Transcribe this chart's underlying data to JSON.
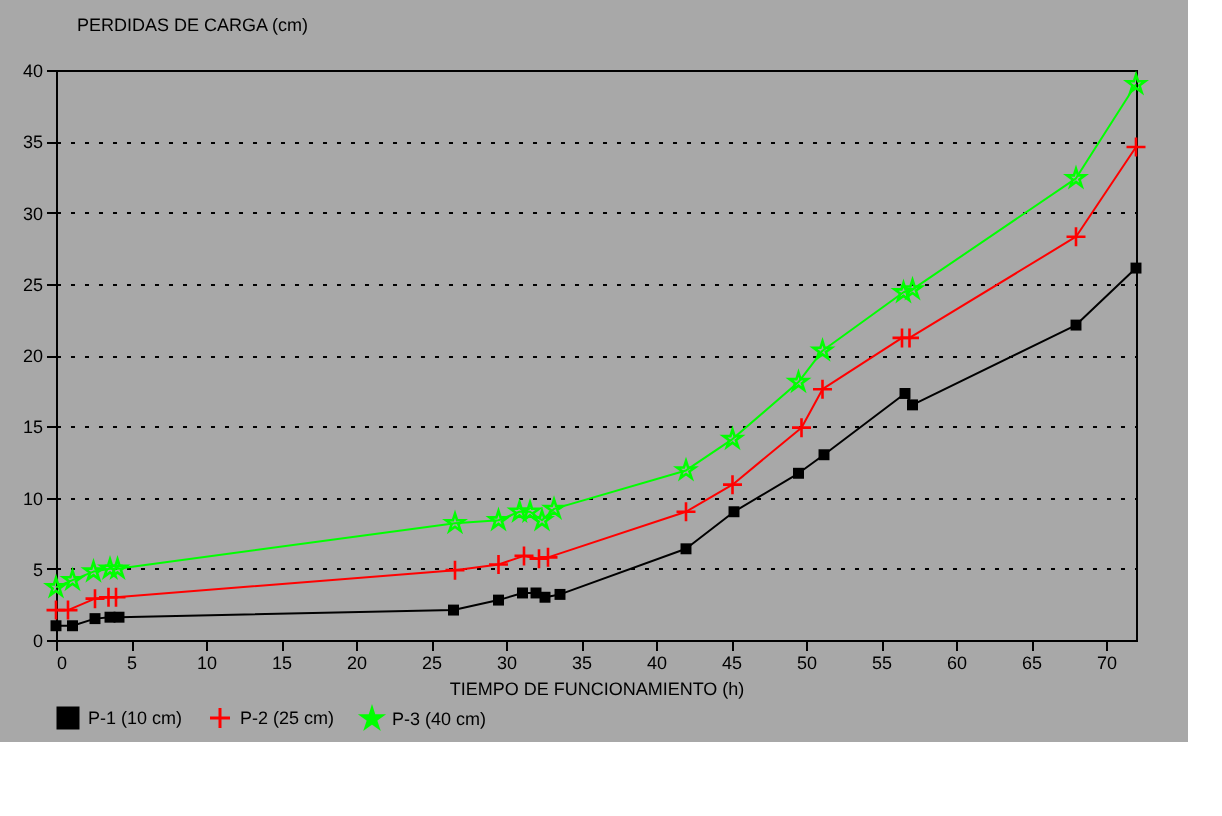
{
  "chart_data": {
    "type": "line",
    "xlabel": "TIEMPO DE FUNCIONAMIENTO (h)",
    "ylabel": "PERDIDAS DE CARGA (cm)",
    "xlim": [
      0,
      72
    ],
    "xticks": [
      0,
      5,
      10,
      15,
      20,
      25,
      30,
      35,
      40,
      45,
      50,
      55,
      60,
      65,
      70
    ],
    "ylim": [
      0,
      40
    ],
    "yticks": [
      0,
      5,
      10,
      15,
      20,
      25,
      30,
      35,
      40
    ],
    "grid": "y",
    "legend": "bottom",
    "series": [
      {
        "name": "P-1 (10 cm)",
        "color": "#000000",
        "marker": "square",
        "x": [
          0,
          1.1,
          2.6,
          3.6,
          4.2,
          26.5,
          29.5,
          31.1,
          32.0,
          32.6,
          33.6,
          42.0,
          45.2,
          49.5,
          51.2,
          56.6,
          57.1,
          68.0,
          72.0
        ],
        "values": [
          1.0,
          1.0,
          1.5,
          1.6,
          1.6,
          2.1,
          2.8,
          3.3,
          3.3,
          3.0,
          3.2,
          6.4,
          9.0,
          11.7,
          13.0,
          17.3,
          16.5,
          22.1,
          26.1
        ]
      },
      {
        "name": "P-2 (25 cm)",
        "color": "#ff0000",
        "marker": "cross",
        "x": [
          0,
          0.8,
          2.6,
          3.5,
          4.0,
          26.6,
          29.5,
          31.2,
          32.2,
          32.8,
          42.0,
          45.1,
          49.7,
          51.1,
          56.4,
          56.9,
          68.0,
          72.0
        ],
        "values": [
          2.1,
          2.1,
          2.9,
          3.0,
          3.0,
          4.9,
          5.3,
          5.9,
          5.7,
          5.8,
          9.0,
          10.9,
          14.9,
          17.6,
          21.2,
          21.2,
          28.3,
          34.6
        ]
      },
      {
        "name": "P-3 (40 cm)",
        "color": "#00ff00",
        "marker": "star",
        "x": [
          0,
          1.1,
          2.5,
          3.6,
          4.1,
          26.6,
          29.5,
          30.9,
          31.6,
          32.4,
          33.2,
          42.0,
          45.1,
          49.5,
          51.1,
          56.5,
          57.1,
          68.0,
          72.0
        ],
        "values": [
          3.7,
          4.2,
          4.8,
          5.0,
          5.0,
          8.2,
          8.4,
          9.0,
          9.0,
          8.4,
          9.2,
          11.9,
          14.1,
          18.1,
          20.3,
          24.4,
          24.6,
          32.4,
          39.0
        ]
      }
    ]
  }
}
